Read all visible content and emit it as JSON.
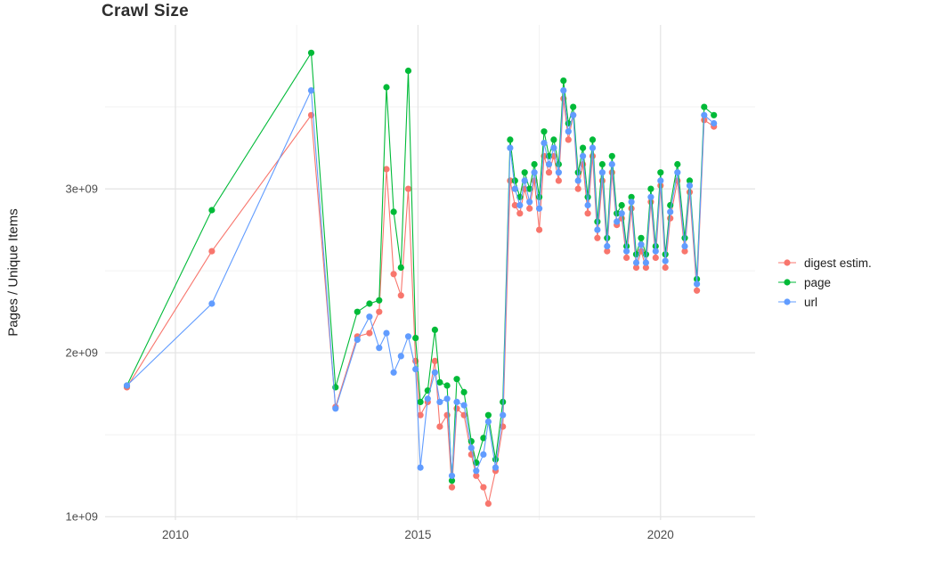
{
  "colors": {
    "background": "#FFFFFF",
    "grid_major": "#E3E3E3",
    "grid_minor": "#F2F2F2",
    "axis_text": "#4D4D4D",
    "title_text": "#2E2E2E"
  },
  "chart_data": {
    "type": "line",
    "title": "Crawl Size",
    "xlabel": "",
    "ylabel": "Pages / Unique Items",
    "legend_position": "right",
    "grid": "major and minor gridlines, light gray on white panel",
    "xlim": [
      2008.55,
      2021.95
    ],
    "ylim": [
      0.98,
      4.0
    ],
    "y_unit": "billions (1e+09)",
    "x_ticks": [
      {
        "value": 2010,
        "label": "2010"
      },
      {
        "value": 2015,
        "label": "2015"
      },
      {
        "value": 2020,
        "label": "2020"
      }
    ],
    "y_ticks": [
      {
        "value": 1,
        "label": "1e+09"
      },
      {
        "value": 2,
        "label": "2e+09"
      },
      {
        "value": 3,
        "label": "3e+09"
      }
    ],
    "x_minor": [
      2012.5,
      2017.5
    ],
    "y_minor": [
      1.5,
      2.5,
      3.5
    ],
    "x": [
      2009.0,
      2010.75,
      2012.8,
      2013.3,
      2013.75,
      2014.0,
      2014.2,
      2014.35,
      2014.5,
      2014.65,
      2014.8,
      2014.95,
      2015.05,
      2015.2,
      2015.35,
      2015.45,
      2015.6,
      2015.7,
      2015.8,
      2015.95,
      2016.1,
      2016.2,
      2016.35,
      2016.45,
      2016.6,
      2016.75,
      2016.9,
      2017.0,
      2017.1,
      2017.2,
      2017.3,
      2017.4,
      2017.5,
      2017.6,
      2017.7,
      2017.8,
      2017.9,
      2018.0,
      2018.1,
      2018.2,
      2018.3,
      2018.4,
      2018.5,
      2018.6,
      2018.7,
      2018.8,
      2018.9,
      2019.0,
      2019.1,
      2019.2,
      2019.3,
      2019.4,
      2019.5,
      2019.6,
      2019.7,
      2019.8,
      2019.9,
      2020.0,
      2020.1,
      2020.2,
      2020.35,
      2020.5,
      2020.6,
      2020.75,
      2020.9,
      2021.1
    ],
    "series": [
      {
        "name": "digest estim.",
        "color": "#F8766D",
        "values": [
          1.79,
          2.62,
          3.45,
          1.67,
          2.1,
          2.12,
          2.25,
          3.12,
          2.48,
          2.35,
          3.0,
          1.95,
          1.62,
          1.7,
          1.95,
          1.55,
          1.62,
          1.18,
          1.66,
          1.62,
          1.38,
          1.25,
          1.18,
          1.08,
          1.28,
          1.55,
          3.05,
          2.9,
          2.85,
          3.0,
          2.88,
          3.05,
          2.75,
          3.2,
          3.1,
          3.2,
          3.05,
          3.55,
          3.3,
          3.45,
          3.0,
          3.15,
          2.85,
          3.2,
          2.7,
          3.05,
          2.62,
          3.1,
          2.78,
          2.82,
          2.58,
          2.88,
          2.52,
          2.62,
          2.52,
          2.92,
          2.58,
          3.02,
          2.52,
          2.82,
          3.05,
          2.62,
          2.98,
          2.38,
          3.42,
          3.38
        ]
      },
      {
        "name": "page",
        "color": "#00BA38",
        "values": [
          1.8,
          2.87,
          3.83,
          1.79,
          2.25,
          2.3,
          2.32,
          3.62,
          2.86,
          2.52,
          3.72,
          2.09,
          1.7,
          1.77,
          2.14,
          1.82,
          1.8,
          1.22,
          1.84,
          1.76,
          1.46,
          1.33,
          1.48,
          1.62,
          1.35,
          1.7,
          3.3,
          3.05,
          2.95,
          3.1,
          3.0,
          3.15,
          2.95,
          3.35,
          3.2,
          3.3,
          3.15,
          3.66,
          3.4,
          3.5,
          3.1,
          3.25,
          2.95,
          3.3,
          2.8,
          3.15,
          2.7,
          3.2,
          2.85,
          2.9,
          2.65,
          2.95,
          2.6,
          2.7,
          2.6,
          3.0,
          2.65,
          3.1,
          2.6,
          2.9,
          3.15,
          2.7,
          3.05,
          2.45,
          3.5,
          3.45
        ]
      },
      {
        "name": "url",
        "color": "#619CFF",
        "values": [
          1.8,
          2.3,
          3.6,
          1.66,
          2.08,
          2.22,
          2.03,
          2.12,
          1.88,
          1.98,
          2.1,
          1.9,
          1.3,
          1.72,
          1.88,
          1.7,
          1.72,
          1.25,
          1.7,
          1.68,
          1.42,
          1.28,
          1.38,
          1.58,
          1.3,
          1.62,
          3.25,
          3.0,
          2.9,
          3.05,
          2.92,
          3.1,
          2.88,
          3.28,
          3.15,
          3.25,
          3.1,
          3.6,
          3.35,
          3.45,
          3.05,
          3.2,
          2.9,
          3.25,
          2.75,
          3.1,
          2.65,
          3.15,
          2.8,
          2.85,
          2.62,
          2.92,
          2.55,
          2.66,
          2.55,
          2.95,
          2.62,
          3.05,
          2.56,
          2.86,
          3.1,
          2.65,
          3.02,
          2.42,
          3.45,
          3.4
        ]
      }
    ]
  }
}
